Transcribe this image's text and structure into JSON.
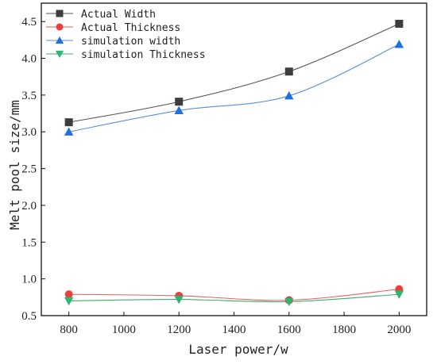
{
  "chart_data": {
    "type": "line",
    "xlabel": "Laser power/w",
    "ylabel": "Melt pool size/mm",
    "xlim": [
      700,
      2100
    ],
    "ylim": [
      0.5,
      4.75
    ],
    "xticks": [
      800,
      1000,
      1200,
      1400,
      1600,
      1800,
      2000
    ],
    "yticks": [
      0.5,
      1.0,
      1.5,
      2.0,
      2.5,
      3.0,
      3.5,
      4.0,
      4.5
    ],
    "xtick_labels": [
      "800",
      "1000",
      "1200",
      "1400",
      "1600",
      "1800",
      "2000"
    ],
    "ytick_labels": [
      "0.5",
      "1.0",
      "1.5",
      "2.0",
      "2.5",
      "3.0",
      "3.5",
      "4.0",
      "4.5"
    ],
    "x": [
      800,
      1200,
      1600,
      2000
    ],
    "grid": false,
    "legend_position": "top-left",
    "series": [
      {
        "name": "Actual Width",
        "values": [
          3.13,
          3.41,
          3.82,
          4.47
        ],
        "marker": "square",
        "color": "#3d3d3d",
        "line_color": "#555555"
      },
      {
        "name": "Actual Thickness",
        "values": [
          0.79,
          0.77,
          0.71,
          0.86
        ],
        "marker": "circle",
        "color": "#e8413a",
        "line_color": "#e06060"
      },
      {
        "name": "simulation width",
        "values": [
          3.0,
          3.29,
          3.49,
          4.19
        ],
        "marker": "triangle-up",
        "color": "#1f6fe0",
        "line_color": "#5a8fd8"
      },
      {
        "name": "simulation Thickness",
        "values": [
          0.7,
          0.72,
          0.69,
          0.79
        ],
        "marker": "triangle-down",
        "color": "#2bb673",
        "line_color": "#43a86b"
      }
    ]
  }
}
